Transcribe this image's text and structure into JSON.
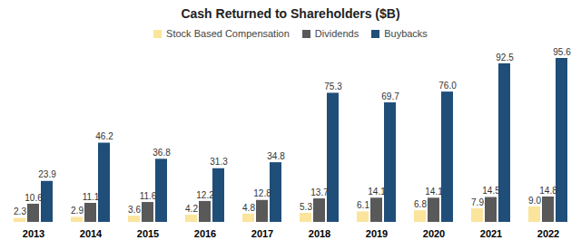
{
  "chart_data": {
    "type": "bar",
    "title": "Cash Returned to Shareholders ($B)",
    "categories": [
      "2013",
      "2014",
      "2015",
      "2016",
      "2017",
      "2018",
      "2019",
      "2020",
      "2021",
      "2022"
    ],
    "series": [
      {
        "name": "Stock Based Compensation",
        "color": "#fbe49c",
        "values": [
          2.3,
          2.9,
          3.6,
          4.2,
          4.8,
          5.3,
          6.1,
          6.8,
          7.9,
          9.0
        ],
        "value_labels": [
          "2.3",
          "2.9",
          "3.6",
          "4.2",
          "4.8",
          "5.3",
          "6.1",
          "6.8",
          "7.9",
          "9.0"
        ]
      },
      {
        "name": "Dividends",
        "color": "#595959",
        "values": [
          10.6,
          11.1,
          11.6,
          12.2,
          12.8,
          13.7,
          14.1,
          14.1,
          14.5,
          14.8
        ]
      },
      {
        "name": "Buybacks",
        "color": "#1f4e79",
        "values": [
          23.9,
          46.2,
          36.8,
          31.3,
          34.8,
          75.3,
          69.7,
          76.0,
          92.5,
          95.6
        ],
        "value_labels": [
          "23.9",
          "46.2",
          "36.8",
          "31.3",
          "34.8",
          "75.3",
          "69.7",
          "76.0",
          "92.5",
          "95.6"
        ]
      }
    ],
    "legend": "top",
    "data_labels": true,
    "tick_labels": "x"
  }
}
